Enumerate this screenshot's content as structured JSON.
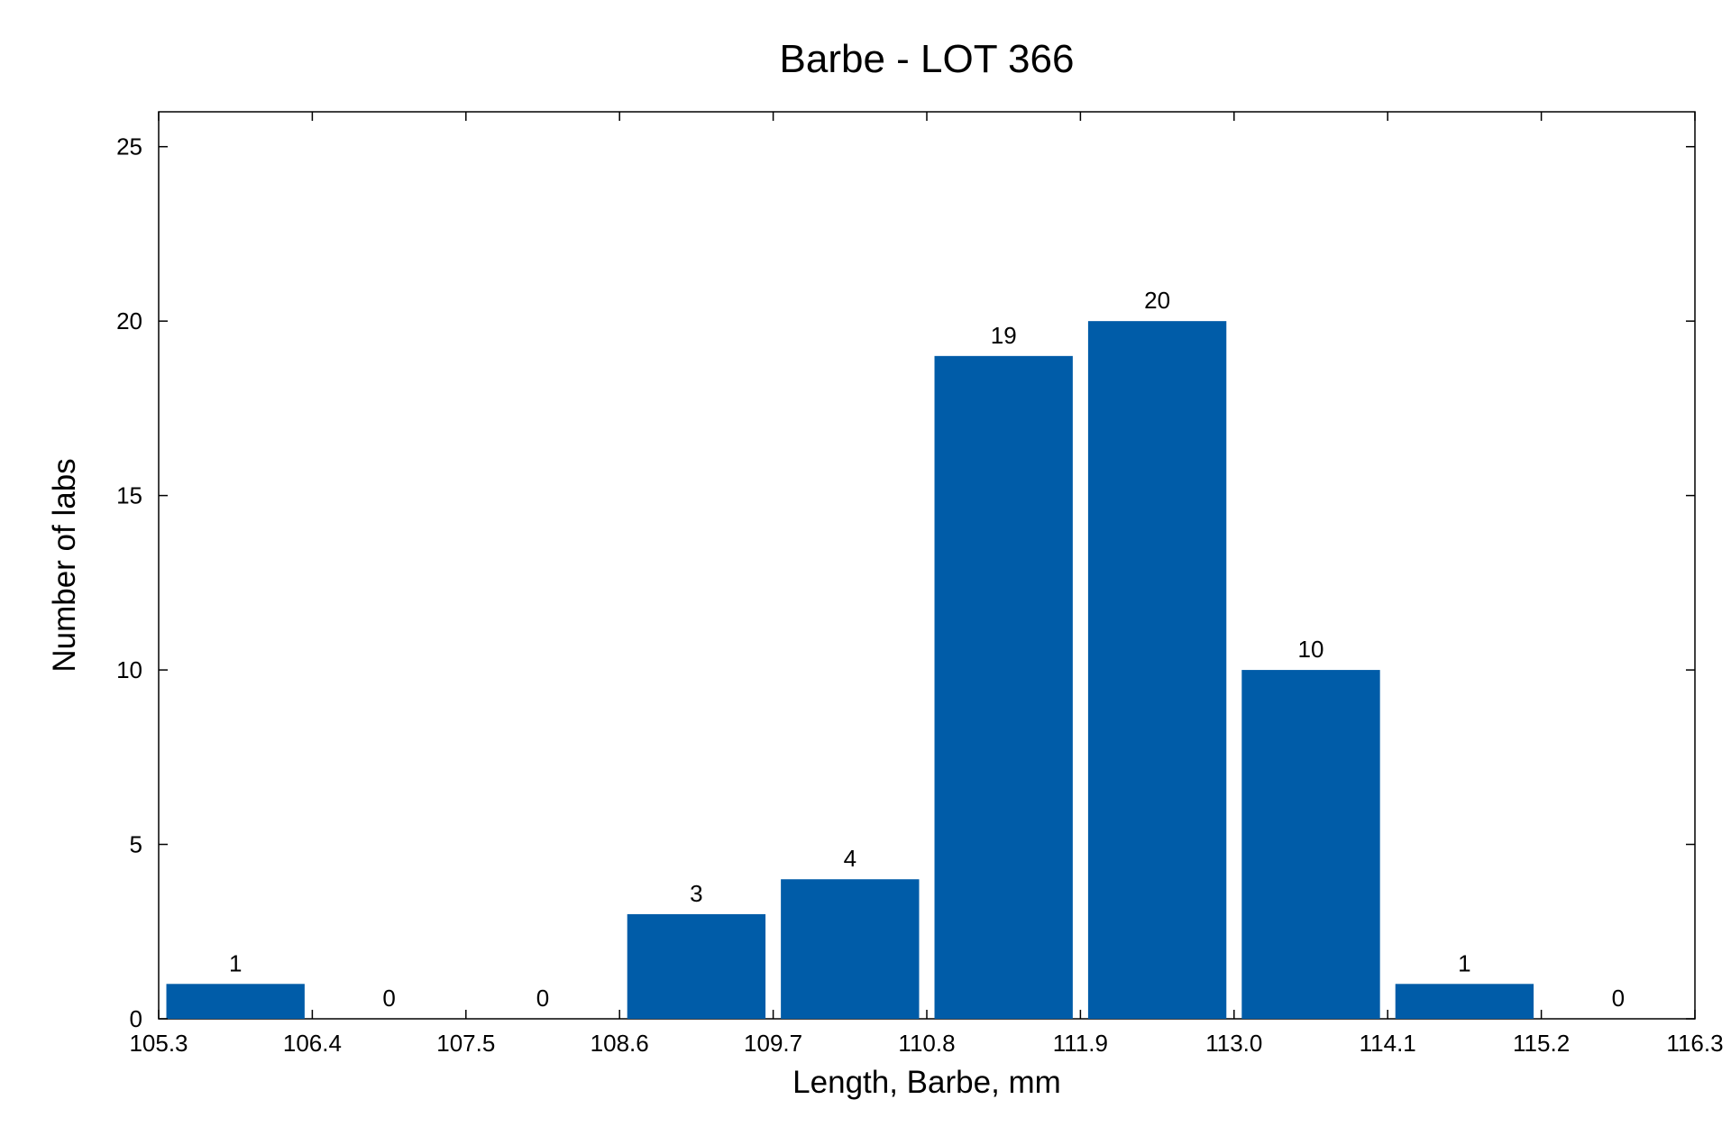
{
  "chart_data": {
    "type": "bar",
    "title": "Barbe - LOT 366",
    "xlabel": "Length, Barbe, mm",
    "ylabel": "Number of labs",
    "bin_edges": [
      "105.3",
      "106.4",
      "107.5",
      "108.6",
      "109.7",
      "110.8",
      "111.9",
      "113.0",
      "114.1",
      "115.2",
      "116.3"
    ],
    "values": [
      1,
      0,
      0,
      3,
      4,
      19,
      20,
      10,
      1,
      0
    ],
    "xlim": [
      105.3,
      116.3
    ],
    "ylim": [
      0,
      26
    ],
    "yticks": [
      0,
      5,
      10,
      15,
      20,
      25
    ],
    "grid": false,
    "legend": "none",
    "bar_color": "#005ca8",
    "axis_color": "#000000"
  }
}
